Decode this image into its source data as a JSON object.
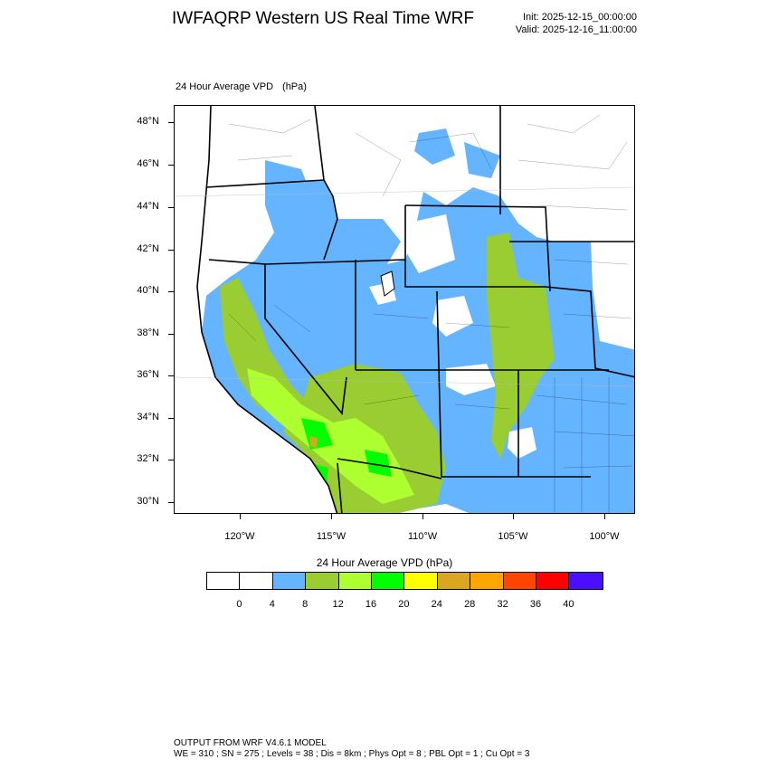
{
  "header": {
    "title": "IWFAQRP Western US Real Time WRF",
    "init": "Init: 2025-12-15_00:00:00",
    "valid": "Valid: 2025-12-16_11:00:00"
  },
  "plot": {
    "variable_label": "24 Hour Average VPD",
    "units_label": "(hPa)",
    "lat_labels": [
      "48°N",
      "46°N",
      "44°N",
      "42°N",
      "40°N",
      "38°N",
      "36°N",
      "34°N",
      "32°N",
      "30°N"
    ],
    "lon_labels": [
      "120°W",
      "115°W",
      "110°W",
      "105°W",
      "100°W"
    ]
  },
  "colorbar": {
    "title": "24 Hour Average VPD  (hPa)",
    "levels": [
      "0",
      "4",
      "8",
      "12",
      "16",
      "20",
      "24",
      "28",
      "32",
      "36",
      "40"
    ],
    "colors": [
      "#ffffff",
      "#ffffff",
      "#64b4ff",
      "#9acd32",
      "#adff2f",
      "#00ff00",
      "#ffff00",
      "#daa520",
      "#ffa500",
      "#ff4500",
      "#ff0000",
      "#4b0fff"
    ]
  },
  "footer": {
    "line1": "OUTPUT FROM WRF V4.6.1 MODEL",
    "line2": "WE = 310 ; SN = 275 ; Levels = 38 ; Dis = 8km ; Phys Opt = 8 ; PBL Opt = 1 ; Cu Opt = 3"
  }
}
